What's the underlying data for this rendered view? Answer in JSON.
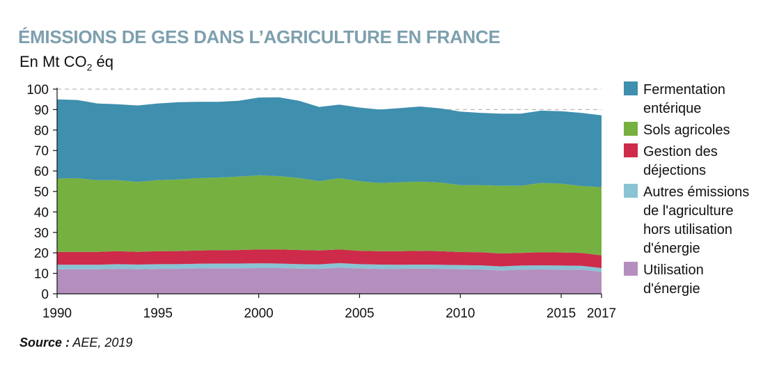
{
  "header": {
    "title": "ÉMISSIONS DE GES DANS L’AGRICULTURE EN FRANCE",
    "unit_prefix": "En Mt CO",
    "unit_sub": "2",
    "unit_suffix": " éq"
  },
  "footer": {
    "source_label": "Source :",
    "source_value": " AEE, 2019"
  },
  "chart_data": {
    "type": "area",
    "stacked": true,
    "ylim": [
      0,
      100
    ],
    "yticks": [
      0,
      10,
      20,
      30,
      40,
      50,
      60,
      70,
      80,
      90,
      100
    ],
    "xlim": [
      1990,
      2017
    ],
    "xticks": [
      1990,
      1995,
      2000,
      2005,
      2010,
      2015,
      2017
    ],
    "grid": "dashed at 90 and 100",
    "legend_position": "right",
    "x": [
      1990,
      1991,
      1992,
      1993,
      1994,
      1995,
      1996,
      1997,
      1998,
      1999,
      2000,
      2001,
      2002,
      2003,
      2004,
      2005,
      2006,
      2007,
      2008,
      2009,
      2010,
      2011,
      2012,
      2013,
      2014,
      2015,
      2016,
      2017
    ],
    "series": [
      {
        "name": "Utilisation d'énergie",
        "color": "#b48fbe",
        "values": [
          12.0,
          12.0,
          12.0,
          12.2,
          12.0,
          12.2,
          12.2,
          12.4,
          12.5,
          12.5,
          12.6,
          12.6,
          12.3,
          12.2,
          12.8,
          12.4,
          12.2,
          12.2,
          12.3,
          12.2,
          12.0,
          11.9,
          11.4,
          11.8,
          11.9,
          11.8,
          11.8,
          10.7
        ]
      },
      {
        "name": "Autres émissions de l'agriculture hors utilisation d'énergie",
        "color": "#8ac3d3",
        "values": [
          2.2,
          2.2,
          2.2,
          2.3,
          2.3,
          2.3,
          2.3,
          2.3,
          2.3,
          2.3,
          2.3,
          2.2,
          2.2,
          2.2,
          2.2,
          2.1,
          2.1,
          2.0,
          2.0,
          2.0,
          2.0,
          2.0,
          2.0,
          2.0,
          2.0,
          2.0,
          1.9,
          1.9
        ]
      },
      {
        "name": "Gestion des déjections",
        "color": "#ce2a4a",
        "values": [
          6.3,
          6.3,
          6.3,
          6.3,
          6.2,
          6.3,
          6.4,
          6.5,
          6.5,
          6.6,
          6.8,
          6.9,
          6.9,
          6.8,
          6.7,
          6.5,
          6.5,
          6.6,
          6.7,
          6.6,
          6.4,
          6.4,
          6.3,
          6.2,
          6.4,
          6.4,
          6.3,
          6.2
        ]
      },
      {
        "name": "Sols agricoles",
        "color": "#76b041",
        "values": [
          35.8,
          36.0,
          35.0,
          34.7,
          34.2,
          34.7,
          35.0,
          35.3,
          35.5,
          35.8,
          36.2,
          35.8,
          35.2,
          33.8,
          34.8,
          34.0,
          33.3,
          33.7,
          33.8,
          33.6,
          32.7,
          32.8,
          33.1,
          32.8,
          33.9,
          33.6,
          32.7,
          33.3
        ]
      },
      {
        "name": "Fermentation entérique",
        "color": "#3f8fae",
        "values": [
          38.7,
          38.2,
          37.5,
          37.1,
          37.3,
          37.5,
          37.7,
          37.3,
          37.0,
          37.1,
          38.0,
          38.5,
          37.7,
          36.3,
          35.9,
          36.0,
          35.9,
          36.2,
          36.7,
          36.2,
          35.9,
          35.3,
          35.2,
          35.2,
          35.3,
          35.4,
          35.7,
          35.1
        ]
      }
    ],
    "legend": [
      {
        "color": "#3f8fae",
        "lines": [
          "Fermentation",
          "entérique"
        ]
      },
      {
        "color": "#76b041",
        "lines": [
          "Sols agricoles"
        ]
      },
      {
        "color": "#ce2a4a",
        "lines": [
          "Gestion des",
          "déjections"
        ]
      },
      {
        "color": "#8ac3d3",
        "lines": [
          "Autres émissions",
          "de l'agriculture",
          "hors utilisation",
          "d'énergie"
        ]
      },
      {
        "color": "#b48fbe",
        "lines": [
          "Utilisation",
          "d'énergie"
        ]
      }
    ]
  }
}
